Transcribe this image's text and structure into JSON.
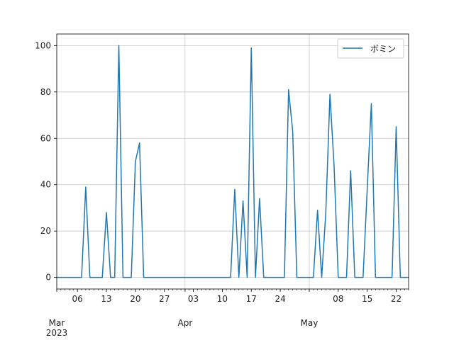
{
  "chart_data": {
    "type": "line",
    "title": "",
    "xlabel": "",
    "ylabel": "",
    "x_start": "2023-03-01",
    "x_end": "2023-05-25",
    "ylim": [
      -5,
      105
    ],
    "y_ticks": [
      0,
      20,
      40,
      60,
      80,
      100
    ],
    "x_minor_tick_labels": [
      {
        "date": "2023-03-06",
        "label": "06"
      },
      {
        "date": "2023-03-13",
        "label": "13"
      },
      {
        "date": "2023-03-20",
        "label": "20"
      },
      {
        "date": "2023-03-27",
        "label": "27"
      },
      {
        "date": "2023-04-03",
        "label": "03"
      },
      {
        "date": "2023-04-10",
        "label": "10"
      },
      {
        "date": "2023-04-17",
        "label": "17"
      },
      {
        "date": "2023-04-24",
        "label": "24"
      },
      {
        "date": "2023-05-08",
        "label": "08"
      },
      {
        "date": "2023-05-15",
        "label": "15"
      },
      {
        "date": "2023-05-22",
        "label": "22"
      }
    ],
    "x_major_tick_labels": [
      {
        "date": "2023-03-01",
        "label": "Mar",
        "sublabel": "2023"
      },
      {
        "date": "2023-04-01",
        "label": "Apr",
        "sublabel": ""
      },
      {
        "date": "2023-05-01",
        "label": "May",
        "sublabel": ""
      }
    ],
    "grid": true,
    "legend_position": "top-right",
    "series": [
      {
        "name": "ボミン",
        "color": "#1f77b4",
        "points": [
          {
            "x": "2023-03-01",
            "y": 0
          },
          {
            "x": "2023-03-07",
            "y": 0
          },
          {
            "x": "2023-03-08",
            "y": 39
          },
          {
            "x": "2023-03-09",
            "y": 0
          },
          {
            "x": "2023-03-12",
            "y": 0
          },
          {
            "x": "2023-03-13",
            "y": 28
          },
          {
            "x": "2023-03-14",
            "y": 0
          },
          {
            "x": "2023-03-15",
            "y": 0
          },
          {
            "x": "2023-03-16",
            "y": 100
          },
          {
            "x": "2023-03-17",
            "y": 0
          },
          {
            "x": "2023-03-19",
            "y": 0
          },
          {
            "x": "2023-03-20",
            "y": 50
          },
          {
            "x": "2023-03-21",
            "y": 58
          },
          {
            "x": "2023-03-22",
            "y": 0
          },
          {
            "x": "2023-04-12",
            "y": 0
          },
          {
            "x": "2023-04-13",
            "y": 38
          },
          {
            "x": "2023-04-14",
            "y": 0
          },
          {
            "x": "2023-04-15",
            "y": 33
          },
          {
            "x": "2023-04-16",
            "y": 0
          },
          {
            "x": "2023-04-17",
            "y": 99
          },
          {
            "x": "2023-04-18",
            "y": 0
          },
          {
            "x": "2023-04-19",
            "y": 34
          },
          {
            "x": "2023-04-20",
            "y": 0
          },
          {
            "x": "2023-04-25",
            "y": 0
          },
          {
            "x": "2023-04-26",
            "y": 81
          },
          {
            "x": "2023-04-27",
            "y": 63
          },
          {
            "x": "2023-04-28",
            "y": 0
          },
          {
            "x": "2023-05-02",
            "y": 0
          },
          {
            "x": "2023-05-03",
            "y": 29
          },
          {
            "x": "2023-05-04",
            "y": 0
          },
          {
            "x": "2023-05-05",
            "y": 28
          },
          {
            "x": "2023-05-06",
            "y": 79
          },
          {
            "x": "2023-05-07",
            "y": 48
          },
          {
            "x": "2023-05-08",
            "y": 0
          },
          {
            "x": "2023-05-10",
            "y": 0
          },
          {
            "x": "2023-05-11",
            "y": 46
          },
          {
            "x": "2023-05-12",
            "y": 0
          },
          {
            "x": "2023-05-14",
            "y": 0
          },
          {
            "x": "2023-05-15",
            "y": 38
          },
          {
            "x": "2023-05-16",
            "y": 75
          },
          {
            "x": "2023-05-17",
            "y": 0
          },
          {
            "x": "2023-05-21",
            "y": 0
          },
          {
            "x": "2023-05-22",
            "y": 65
          },
          {
            "x": "2023-05-23",
            "y": 0
          },
          {
            "x": "2023-05-25",
            "y": 0
          }
        ]
      }
    ]
  }
}
